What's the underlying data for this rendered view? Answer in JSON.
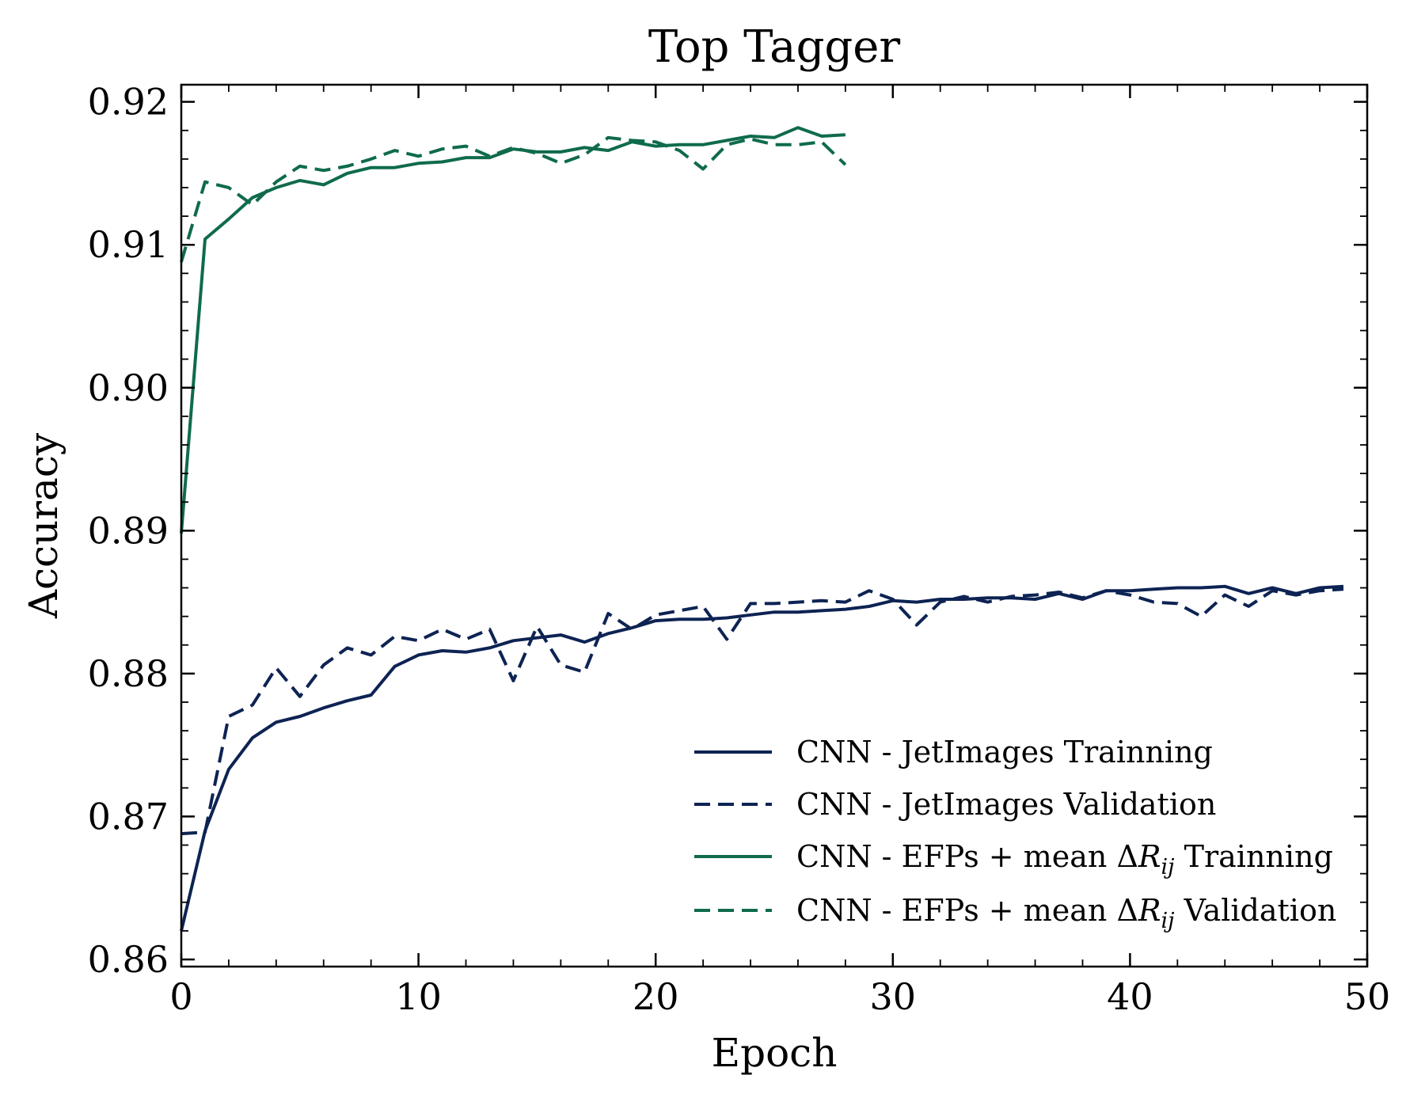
{
  "chart_data": {
    "type": "line",
    "title": "Top Tagger",
    "xlabel": "Epoch",
    "ylabel": "Accuracy",
    "xlim": [
      0,
      50
    ],
    "ylim": [
      0.8595,
      0.9212
    ],
    "xticks": [
      0,
      10,
      20,
      30,
      40,
      50
    ],
    "xtick_labels": [
      "0",
      "10",
      "20",
      "30",
      "40",
      "50"
    ],
    "yticks": [
      0.86,
      0.87,
      0.88,
      0.89,
      0.9,
      0.91,
      0.92
    ],
    "ytick_labels": [
      "0.86",
      "0.87",
      "0.88",
      "0.89",
      "0.90",
      "0.91",
      "0.92"
    ],
    "grid": false,
    "ticks_inward_all_sides": true,
    "legend_position": "lower-right",
    "legend": {
      "items": [
        {
          "prefix": "CNN - JetImages Trainning",
          "sym": "",
          "sub": "",
          "suffix": ""
        },
        {
          "prefix": "CNN - JetImages Validation",
          "sym": "",
          "sub": "",
          "suffix": ""
        },
        {
          "prefix": "CNN - EFPs + mean Δ",
          "sym": "R",
          "sub": "ij",
          "suffix": " Trainning"
        },
        {
          "prefix": "CNN - EFPs + mean Δ",
          "sym": "R",
          "sub": "ij",
          "suffix": " Validation"
        }
      ]
    },
    "series": [
      {
        "name": "CNN - JetImages Trainning",
        "color": "#0d2353",
        "dash": "solid",
        "x": [
          0,
          1,
          2,
          3,
          4,
          5,
          6,
          7,
          8,
          9,
          10,
          11,
          12,
          13,
          14,
          15,
          16,
          17,
          18,
          19,
          20,
          21,
          22,
          23,
          24,
          25,
          26,
          27,
          28,
          29,
          30,
          31,
          32,
          33,
          34,
          35,
          36,
          37,
          38,
          39,
          40,
          41,
          42,
          43,
          44,
          45,
          46,
          47,
          48,
          49
        ],
        "y": [
          0.862,
          0.869,
          0.8733,
          0.8755,
          0.8766,
          0.877,
          0.8776,
          0.8781,
          0.8785,
          0.8805,
          0.8813,
          0.8816,
          0.8815,
          0.8818,
          0.8823,
          0.8825,
          0.8827,
          0.8822,
          0.8828,
          0.8832,
          0.8837,
          0.8838,
          0.8838,
          0.8839,
          0.8841,
          0.8843,
          0.8843,
          0.8844,
          0.8845,
          0.8847,
          0.8851,
          0.885,
          0.8852,
          0.8852,
          0.8853,
          0.8853,
          0.8852,
          0.8856,
          0.8852,
          0.8858,
          0.8858,
          0.8859,
          0.886,
          0.886,
          0.8861,
          0.8856,
          0.886,
          0.8856,
          0.886,
          0.8861
        ]
      },
      {
        "name": "CNN - JetImages Validation",
        "color": "#0d2353",
        "dash": "dashed",
        "x": [
          0,
          1,
          2,
          3,
          4,
          5,
          6,
          7,
          8,
          9,
          10,
          11,
          12,
          13,
          14,
          15,
          16,
          17,
          18,
          19,
          20,
          21,
          22,
          23,
          24,
          25,
          26,
          27,
          28,
          29,
          30,
          31,
          32,
          33,
          34,
          35,
          36,
          37,
          38,
          39,
          40,
          41,
          42,
          43,
          44,
          45,
          46,
          47,
          48,
          49
        ],
        "y": [
          0.8688,
          0.8689,
          0.877,
          0.8778,
          0.8804,
          0.8784,
          0.8806,
          0.8818,
          0.8813,
          0.8826,
          0.8823,
          0.8831,
          0.8824,
          0.8831,
          0.8795,
          0.8833,
          0.8806,
          0.8801,
          0.8842,
          0.8831,
          0.8841,
          0.8844,
          0.8847,
          0.8824,
          0.8849,
          0.8849,
          0.885,
          0.8851,
          0.885,
          0.8858,
          0.8852,
          0.8834,
          0.885,
          0.8854,
          0.885,
          0.8854,
          0.8855,
          0.8857,
          0.8853,
          0.8858,
          0.8855,
          0.885,
          0.8849,
          0.884,
          0.8855,
          0.8847,
          0.8858,
          0.8855,
          0.8858,
          0.8859
        ]
      },
      {
        "name": "CNN - EFPs + mean ΔRij Trainning",
        "color": "#0f6b4b",
        "dash": "solid",
        "x": [
          0,
          1,
          2,
          3,
          4,
          5,
          6,
          7,
          8,
          9,
          10,
          11,
          12,
          13,
          14,
          15,
          16,
          17,
          18,
          19,
          20,
          21,
          22,
          23,
          24,
          25,
          26,
          27,
          28
        ],
        "y": [
          0.8898,
          0.9104,
          0.9118,
          0.9133,
          0.914,
          0.9145,
          0.9142,
          0.915,
          0.9154,
          0.9154,
          0.9157,
          0.9158,
          0.9161,
          0.9161,
          0.9167,
          0.9165,
          0.9165,
          0.9168,
          0.9166,
          0.9172,
          0.9169,
          0.917,
          0.917,
          0.9173,
          0.9176,
          0.9175,
          0.9182,
          0.9176,
          0.9177
        ]
      },
      {
        "name": "CNN - EFPs + mean ΔRij Validation",
        "color": "#0f6b4b",
        "dash": "dashed",
        "x": [
          0,
          1,
          2,
          3,
          4,
          5,
          6,
          7,
          8,
          9,
          10,
          11,
          12,
          13,
          14,
          15,
          16,
          17,
          18,
          19,
          20,
          21,
          22,
          23,
          24,
          25,
          26,
          27,
          28
        ],
        "y": [
          0.9088,
          0.9144,
          0.914,
          0.9128,
          0.9144,
          0.9155,
          0.9152,
          0.9155,
          0.916,
          0.9166,
          0.9162,
          0.9167,
          0.9169,
          0.9162,
          0.9168,
          0.9164,
          0.9157,
          0.9163,
          0.9175,
          0.9173,
          0.9172,
          0.9166,
          0.9153,
          0.917,
          0.9174,
          0.917,
          0.917,
          0.9172,
          0.9156
        ]
      }
    ]
  }
}
